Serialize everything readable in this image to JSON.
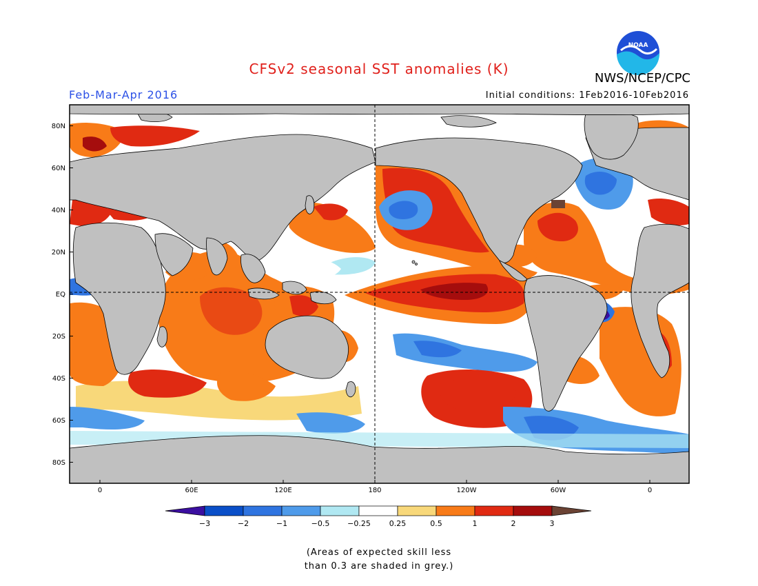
{
  "title": "CFSv2 seasonal SST anomalies (K)",
  "agency": "NWS/NCEP/CPC",
  "season": "Feb-Mar-Apr 2016",
  "initial_conditions": "Initial conditions: 1Feb2016-10Feb2016",
  "colors": {
    "title": "#e0201b",
    "season": "#2b50e6",
    "land": "#c0c0c0",
    "noaa_blue": "#1f4fd6",
    "noaa_cyan": "#22b7e8"
  },
  "logo": {
    "icon": "noaa-logo-icon",
    "text": "NOAA"
  },
  "map": {
    "lat_labels": [
      "80N",
      "60N",
      "40N",
      "20N",
      "EQ",
      "20S",
      "40S",
      "60S",
      "80S"
    ],
    "lon_labels": [
      "0",
      "60E",
      "120E",
      "180",
      "120W",
      "60W",
      "0"
    ]
  },
  "colorbar": {
    "tick_labels": [
      "-3",
      "-2",
      "-1",
      "-0.5",
      "-0.25",
      "0.25",
      "0.5",
      "1",
      "2",
      "3"
    ],
    "colors": [
      "#3b0fa0",
      "#0a4fc8",
      "#2f74e0",
      "#4f9bea",
      "#b0e8f2",
      "#ffffff",
      "#f8d87a",
      "#f87b18",
      "#e02a12",
      "#a50d0d",
      "#6b4334"
    ]
  },
  "note": [
    "(Areas of expected skill less",
    "than 0.3 are shaded in grey.)"
  ]
}
